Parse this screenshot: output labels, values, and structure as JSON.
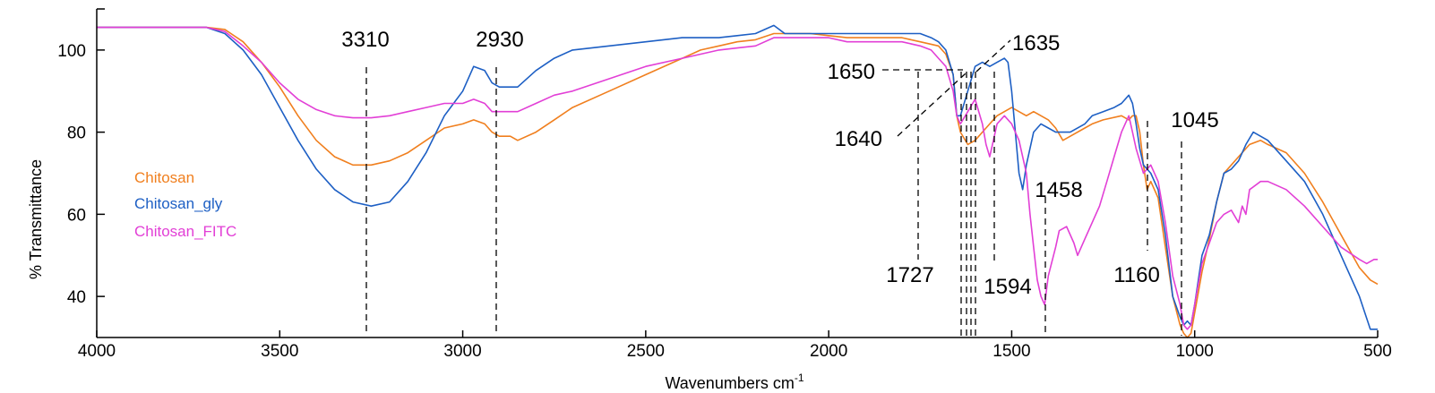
{
  "chart_data": {
    "type": "line",
    "xlabel": "Wavenumbers cm",
    "xlabel_sup": "-1",
    "ylabel": "% Transmittance",
    "xlim": [
      4000,
      500
    ],
    "ylim": [
      30,
      110
    ],
    "x_reversed": true,
    "xticks": [
      4000,
      3500,
      3000,
      2500,
      2000,
      1500,
      1000,
      500
    ],
    "xtick_labels": [
      "4000",
      "3500",
      "3000",
      "2500",
      "2000",
      "1500",
      "1000",
      "500"
    ],
    "yticks": [
      40,
      60,
      80,
      100
    ],
    "ytick_labels": [
      "40",
      "60",
      "80",
      "100"
    ],
    "grid": false,
    "legend_position": "left",
    "series": [
      {
        "name": "Chitosan",
        "color": "#f07f1e",
        "points": [
          [
            4000,
            105.5
          ],
          [
            3700,
            105.5
          ],
          [
            3650,
            105
          ],
          [
            3600,
            102
          ],
          [
            3550,
            97
          ],
          [
            3500,
            91
          ],
          [
            3450,
            84
          ],
          [
            3400,
            78
          ],
          [
            3350,
            74
          ],
          [
            3300,
            72
          ],
          [
            3250,
            72
          ],
          [
            3200,
            73
          ],
          [
            3150,
            75
          ],
          [
            3100,
            78
          ],
          [
            3050,
            81
          ],
          [
            3000,
            82
          ],
          [
            2970,
            83
          ],
          [
            2940,
            82
          ],
          [
            2920,
            80
          ],
          [
            2900,
            79
          ],
          [
            2870,
            79
          ],
          [
            2850,
            78
          ],
          [
            2800,
            80
          ],
          [
            2750,
            83
          ],
          [
            2700,
            86
          ],
          [
            2600,
            90
          ],
          [
            2500,
            94
          ],
          [
            2400,
            98
          ],
          [
            2350,
            100
          ],
          [
            2300,
            101
          ],
          [
            2250,
            102
          ],
          [
            2200,
            102.5
          ],
          [
            2150,
            104
          ],
          [
            2100,
            104
          ],
          [
            2050,
            104
          ],
          [
            2000,
            103.5
          ],
          [
            1950,
            103
          ],
          [
            1900,
            103
          ],
          [
            1850,
            103
          ],
          [
            1800,
            103
          ],
          [
            1750,
            102
          ],
          [
            1700,
            101
          ],
          [
            1680,
            99
          ],
          [
            1660,
            94
          ],
          [
            1650,
            84
          ],
          [
            1640,
            80
          ],
          [
            1620,
            77
          ],
          [
            1600,
            78
          ],
          [
            1580,
            80
          ],
          [
            1560,
            82
          ],
          [
            1540,
            84
          ],
          [
            1500,
            86
          ],
          [
            1480,
            85
          ],
          [
            1460,
            84
          ],
          [
            1440,
            85
          ],
          [
            1420,
            84
          ],
          [
            1400,
            83
          ],
          [
            1380,
            81
          ],
          [
            1360,
            78
          ],
          [
            1340,
            79
          ],
          [
            1300,
            81
          ],
          [
            1280,
            82
          ],
          [
            1250,
            83
          ],
          [
            1200,
            84
          ],
          [
            1180,
            83
          ],
          [
            1170,
            84
          ],
          [
            1160,
            84
          ],
          [
            1150,
            80
          ],
          [
            1140,
            72
          ],
          [
            1130,
            66
          ],
          [
            1120,
            68
          ],
          [
            1100,
            64
          ],
          [
            1080,
            52
          ],
          [
            1060,
            40
          ],
          [
            1040,
            33
          ],
          [
            1030,
            31
          ],
          [
            1020,
            30
          ],
          [
            1010,
            31
          ],
          [
            1000,
            36
          ],
          [
            980,
            46
          ],
          [
            960,
            54
          ],
          [
            940,
            63
          ],
          [
            920,
            70
          ],
          [
            900,
            72
          ],
          [
            880,
            74
          ],
          [
            850,
            77
          ],
          [
            820,
            78
          ],
          [
            800,
            77
          ],
          [
            750,
            75
          ],
          [
            700,
            70
          ],
          [
            650,
            63
          ],
          [
            600,
            55
          ],
          [
            550,
            47
          ],
          [
            520,
            44
          ],
          [
            500,
            43
          ]
        ]
      },
      {
        "name": "Chitosan_gly",
        "color": "#1d5fc4",
        "points": [
          [
            4000,
            105.5
          ],
          [
            3700,
            105.5
          ],
          [
            3650,
            104
          ],
          [
            3600,
            100
          ],
          [
            3550,
            94
          ],
          [
            3500,
            86
          ],
          [
            3450,
            78
          ],
          [
            3400,
            71
          ],
          [
            3350,
            66
          ],
          [
            3300,
            63
          ],
          [
            3250,
            62
          ],
          [
            3200,
            63
          ],
          [
            3150,
            68
          ],
          [
            3100,
            75
          ],
          [
            3050,
            84
          ],
          [
            3000,
            90
          ],
          [
            2970,
            96
          ],
          [
            2940,
            95
          ],
          [
            2920,
            92
          ],
          [
            2900,
            91
          ],
          [
            2870,
            91
          ],
          [
            2850,
            91
          ],
          [
            2800,
            95
          ],
          [
            2750,
            98
          ],
          [
            2700,
            100
          ],
          [
            2600,
            101
          ],
          [
            2500,
            102
          ],
          [
            2400,
            103
          ],
          [
            2350,
            103
          ],
          [
            2300,
            103
          ],
          [
            2250,
            103.5
          ],
          [
            2200,
            104
          ],
          [
            2150,
            106
          ],
          [
            2120,
            104
          ],
          [
            2100,
            104
          ],
          [
            2050,
            104
          ],
          [
            2000,
            104
          ],
          [
            1950,
            104
          ],
          [
            1900,
            104
          ],
          [
            1850,
            104
          ],
          [
            1800,
            104
          ],
          [
            1750,
            104
          ],
          [
            1720,
            103
          ],
          [
            1700,
            102
          ],
          [
            1680,
            100
          ],
          [
            1660,
            94
          ],
          [
            1650,
            84
          ],
          [
            1640,
            84
          ],
          [
            1620,
            90
          ],
          [
            1600,
            96
          ],
          [
            1580,
            97
          ],
          [
            1560,
            96
          ],
          [
            1540,
            97
          ],
          [
            1520,
            98
          ],
          [
            1510,
            97
          ],
          [
            1500,
            90
          ],
          [
            1490,
            80
          ],
          [
            1480,
            70
          ],
          [
            1470,
            66
          ],
          [
            1460,
            72
          ],
          [
            1440,
            80
          ],
          [
            1420,
            82
          ],
          [
            1400,
            81
          ],
          [
            1380,
            80
          ],
          [
            1360,
            80
          ],
          [
            1340,
            80
          ],
          [
            1300,
            82
          ],
          [
            1280,
            84
          ],
          [
            1250,
            85
          ],
          [
            1220,
            86
          ],
          [
            1200,
            87
          ],
          [
            1180,
            89
          ],
          [
            1170,
            87
          ],
          [
            1160,
            82
          ],
          [
            1150,
            76
          ],
          [
            1140,
            72
          ],
          [
            1120,
            70
          ],
          [
            1100,
            66
          ],
          [
            1080,
            55
          ],
          [
            1060,
            40
          ],
          [
            1040,
            35
          ],
          [
            1030,
            33
          ],
          [
            1020,
            34
          ],
          [
            1010,
            33
          ],
          [
            1000,
            38
          ],
          [
            980,
            50
          ],
          [
            960,
            55
          ],
          [
            940,
            63
          ],
          [
            920,
            70
          ],
          [
            900,
            71
          ],
          [
            880,
            73
          ],
          [
            860,
            77
          ],
          [
            840,
            80
          ],
          [
            820,
            79
          ],
          [
            800,
            78
          ],
          [
            750,
            73
          ],
          [
            700,
            68
          ],
          [
            650,
            60
          ],
          [
            600,
            50
          ],
          [
            550,
            40
          ],
          [
            520,
            32
          ],
          [
            500,
            32
          ]
        ]
      },
      {
        "name": "Chitosan_FITC",
        "color": "#e23fd6",
        "points": [
          [
            4000,
            105.5
          ],
          [
            3700,
            105.5
          ],
          [
            3650,
            104.5
          ],
          [
            3600,
            101
          ],
          [
            3550,
            97
          ],
          [
            3500,
            92
          ],
          [
            3450,
            88
          ],
          [
            3400,
            85.5
          ],
          [
            3350,
            84
          ],
          [
            3300,
            83.5
          ],
          [
            3250,
            83.5
          ],
          [
            3200,
            84
          ],
          [
            3150,
            85
          ],
          [
            3100,
            86
          ],
          [
            3050,
            87
          ],
          [
            3000,
            87
          ],
          [
            2970,
            88
          ],
          [
            2940,
            87
          ],
          [
            2920,
            85
          ],
          [
            2900,
            85
          ],
          [
            2870,
            85
          ],
          [
            2850,
            85
          ],
          [
            2800,
            87
          ],
          [
            2750,
            89
          ],
          [
            2700,
            90
          ],
          [
            2600,
            93
          ],
          [
            2500,
            96
          ],
          [
            2400,
            98
          ],
          [
            2350,
            99
          ],
          [
            2300,
            100
          ],
          [
            2250,
            100.5
          ],
          [
            2200,
            101
          ],
          [
            2150,
            103
          ],
          [
            2100,
            103
          ],
          [
            2050,
            103
          ],
          [
            2000,
            103
          ],
          [
            1950,
            102
          ],
          [
            1900,
            102
          ],
          [
            1850,
            102
          ],
          [
            1800,
            102
          ],
          [
            1750,
            101
          ],
          [
            1720,
            100
          ],
          [
            1700,
            98
          ],
          [
            1680,
            96
          ],
          [
            1660,
            90
          ],
          [
            1650,
            84
          ],
          [
            1640,
            82
          ],
          [
            1620,
            85
          ],
          [
            1600,
            88
          ],
          [
            1580,
            82
          ],
          [
            1570,
            77
          ],
          [
            1560,
            74
          ],
          [
            1550,
            78
          ],
          [
            1540,
            82
          ],
          [
            1520,
            84
          ],
          [
            1500,
            82
          ],
          [
            1480,
            78
          ],
          [
            1460,
            70
          ],
          [
            1450,
            60
          ],
          [
            1440,
            52
          ],
          [
            1430,
            44
          ],
          [
            1420,
            40
          ],
          [
            1410,
            38
          ],
          [
            1400,
            45
          ],
          [
            1380,
            52
          ],
          [
            1370,
            56
          ],
          [
            1350,
            57
          ],
          [
            1330,
            53
          ],
          [
            1320,
            50
          ],
          [
            1300,
            54
          ],
          [
            1280,
            58
          ],
          [
            1260,
            62
          ],
          [
            1240,
            68
          ],
          [
            1220,
            74
          ],
          [
            1200,
            80
          ],
          [
            1180,
            84
          ],
          [
            1170,
            80
          ],
          [
            1160,
            76
          ],
          [
            1150,
            73
          ],
          [
            1140,
            70
          ],
          [
            1120,
            72
          ],
          [
            1100,
            68
          ],
          [
            1080,
            58
          ],
          [
            1060,
            45
          ],
          [
            1040,
            38
          ],
          [
            1030,
            33
          ],
          [
            1020,
            32
          ],
          [
            1010,
            33
          ],
          [
            1000,
            38
          ],
          [
            980,
            48
          ],
          [
            960,
            53
          ],
          [
            940,
            58
          ],
          [
            920,
            60
          ],
          [
            900,
            61
          ],
          [
            880,
            58
          ],
          [
            870,
            62
          ],
          [
            860,
            60
          ],
          [
            850,
            66
          ],
          [
            820,
            68
          ],
          [
            800,
            68
          ],
          [
            750,
            66
          ],
          [
            700,
            62
          ],
          [
            650,
            57
          ],
          [
            600,
            52
          ],
          [
            550,
            49
          ],
          [
            530,
            48
          ],
          [
            510,
            49
          ],
          [
            500,
            49
          ]
        ]
      }
    ],
    "annotations": [
      {
        "label": "3310",
        "x": 3310
      },
      {
        "label": "2930",
        "x": 2930
      },
      {
        "label": "1650",
        "x": 1650
      },
      {
        "label": "1635",
        "x": 1635
      },
      {
        "label": "1640",
        "x": 1640
      },
      {
        "label": "1727",
        "x": 1727
      },
      {
        "label": "1594",
        "x": 1594
      },
      {
        "label": "1458",
        "x": 1458
      },
      {
        "label": "1160",
        "x": 1160
      },
      {
        "label": "1045",
        "x": 1045
      }
    ]
  }
}
